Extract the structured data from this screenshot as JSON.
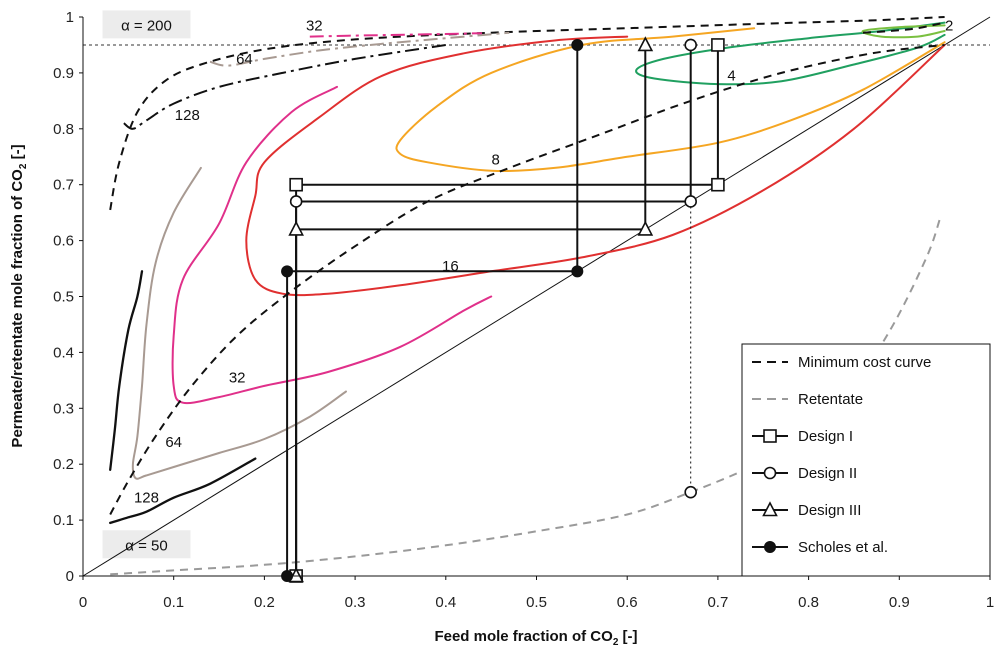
{
  "chart_data": {
    "type": "line",
    "xlabel": "Feed  mole fraction of CO",
    "xlabel_sub": "2",
    "xlabel_suffix": " [-]",
    "ylabel": "Permeate/retentate mole fraction of CO",
    "ylabel_sub": "2",
    "ylabel_suffix": " [-]",
    "xlim": [
      0,
      1
    ],
    "ylim": [
      0,
      1
    ],
    "x_ticks": [
      "0",
      "0.1",
      "0.2",
      "0.3",
      "0.4",
      "0.5",
      "0.6",
      "0.7",
      "0.8",
      "0.9",
      "1"
    ],
    "y_ticks": [
      "0",
      "0.1",
      "0.2",
      "0.3",
      "0.4",
      "0.5",
      "0.6",
      "0.7",
      "0.8",
      "0.9",
      "1"
    ],
    "grid": false,
    "reference_line_y": 0.95,
    "alpha_labels": [
      {
        "text": "α = 200",
        "x": 0.07,
        "y": 0.985
      },
      {
        "text": "α = 50",
        "x": 0.07,
        "y": 0.055
      }
    ],
    "legend": {
      "placement": "bottom-right",
      "entries": [
        {
          "label": "Minimum cost curve",
          "style": "dash",
          "color": "#111111"
        },
        {
          "label": "Retentate",
          "style": "dash",
          "color": "#9a9a9a"
        },
        {
          "label": "Design I",
          "style": "square",
          "color": "#111111"
        },
        {
          "label": "Design II",
          "style": "circle",
          "color": "#111111"
        },
        {
          "label": "Design III",
          "style": "triangle",
          "color": "#111111"
        },
        {
          "label": "Scholes et al.",
          "style": "dot",
          "color": "#111111"
        }
      ]
    },
    "diagonal": [
      [
        0,
        0
      ],
      [
        1,
        1
      ]
    ],
    "min_cost_curves": [
      {
        "name": "α = 200",
        "color": "#111111",
        "dash": "8,6",
        "points": [
          [
            0.03,
            0.655
          ],
          [
            0.04,
            0.74
          ],
          [
            0.06,
            0.83
          ],
          [
            0.09,
            0.885
          ],
          [
            0.13,
            0.915
          ],
          [
            0.2,
            0.942
          ],
          [
            0.3,
            0.96
          ],
          [
            0.45,
            0.972
          ],
          [
            0.6,
            0.98
          ],
          [
            0.75,
            0.988
          ],
          [
            0.87,
            0.994
          ],
          [
            0.95,
            1.0
          ]
        ]
      },
      {
        "name": "α = 50",
        "color": "#111111",
        "dash": "8,6",
        "points": [
          [
            0.03,
            0.11
          ],
          [
            0.05,
            0.17
          ],
          [
            0.08,
            0.25
          ],
          [
            0.12,
            0.34
          ],
          [
            0.17,
            0.43
          ],
          [
            0.23,
            0.51
          ],
          [
            0.3,
            0.59
          ],
          [
            0.38,
            0.67
          ],
          [
            0.47,
            0.73
          ],
          [
            0.57,
            0.79
          ],
          [
            0.67,
            0.85
          ],
          [
            0.77,
            0.9
          ],
          [
            0.87,
            0.935
          ],
          [
            0.95,
            0.95
          ]
        ]
      },
      {
        "name": "α = 128 (high)",
        "color": "#111111",
        "dash": "14,5,3,5",
        "points": [
          [
            0.045,
            0.81
          ],
          [
            0.055,
            0.8
          ],
          [
            0.07,
            0.815
          ],
          [
            0.1,
            0.845
          ],
          [
            0.15,
            0.875
          ],
          [
            0.22,
            0.9
          ],
          [
            0.3,
            0.925
          ],
          [
            0.4,
            0.95
          ]
        ]
      },
      {
        "name": "α = 64 (high)",
        "color": "#a89a92",
        "dash": "14,5,3,5",
        "points": [
          [
            0.14,
            0.92
          ],
          [
            0.16,
            0.913
          ],
          [
            0.2,
            0.925
          ],
          [
            0.26,
            0.94
          ],
          [
            0.33,
            0.952
          ],
          [
            0.4,
            0.962
          ],
          [
            0.47,
            0.972
          ]
        ]
      },
      {
        "name": "α = 32 (high)",
        "color": "#e0308a",
        "dash": "14,5,3,5",
        "points": [
          [
            0.25,
            0.965
          ],
          [
            0.31,
            0.967
          ],
          [
            0.38,
            0.969
          ],
          [
            0.44,
            0.971
          ]
        ]
      },
      {
        "name": "α = 2 (high)",
        "color": "#111111",
        "dash": "8,6",
        "points": [
          [
            0.86,
            0.972
          ],
          [
            0.89,
            0.975
          ],
          [
            0.92,
            0.98
          ],
          [
            0.95,
            0.99
          ]
        ]
      }
    ],
    "alpha_curves": [
      {
        "name": "128",
        "color": "#111111",
        "width": 2.3,
        "points": [
          [
            0.03,
            0.095
          ],
          [
            0.04,
            0.1
          ],
          [
            0.05,
            0.105
          ],
          [
            0.07,
            0.115
          ],
          [
            0.1,
            0.14
          ],
          [
            0.14,
            0.165
          ],
          [
            0.19,
            0.21
          ]
        ]
      },
      {
        "name": "128",
        "color": "#111111",
        "width": 2.3,
        "points": [
          [
            0.03,
            0.19
          ],
          [
            0.035,
            0.26
          ],
          [
            0.04,
            0.34
          ],
          [
            0.05,
            0.44
          ],
          [
            0.06,
            0.5
          ],
          [
            0.065,
            0.545
          ]
        ]
      },
      {
        "name": "64",
        "color": "#a89a92",
        "width": 2.0,
        "points": [
          [
            0.13,
            0.73
          ],
          [
            0.1,
            0.65
          ],
          [
            0.08,
            0.56
          ],
          [
            0.07,
            0.45
          ],
          [
            0.065,
            0.34
          ],
          [
            0.06,
            0.25
          ],
          [
            0.055,
            0.2
          ],
          [
            0.058,
            0.175
          ],
          [
            0.07,
            0.18
          ],
          [
            0.1,
            0.195
          ],
          [
            0.15,
            0.22
          ],
          [
            0.2,
            0.245
          ],
          [
            0.25,
            0.285
          ],
          [
            0.29,
            0.33
          ]
        ]
      },
      {
        "name": "32",
        "color": "#e0308a",
        "width": 2.0,
        "points": [
          [
            0.28,
            0.875
          ],
          [
            0.23,
            0.83
          ],
          [
            0.18,
            0.74
          ],
          [
            0.15,
            0.63
          ],
          [
            0.11,
            0.53
          ],
          [
            0.1,
            0.43
          ],
          [
            0.1,
            0.34
          ],
          [
            0.11,
            0.31
          ],
          [
            0.15,
            0.32
          ],
          [
            0.2,
            0.34
          ],
          [
            0.27,
            0.365
          ],
          [
            0.35,
            0.41
          ],
          [
            0.42,
            0.475
          ],
          [
            0.45,
            0.5
          ]
        ]
      },
      {
        "name": "16",
        "color": "#e03030",
        "width": 2.0,
        "points": [
          [
            0.6,
            0.965
          ],
          [
            0.52,
            0.958
          ],
          [
            0.42,
            0.935
          ],
          [
            0.33,
            0.895
          ],
          [
            0.26,
            0.82
          ],
          [
            0.2,
            0.74
          ],
          [
            0.19,
            0.68
          ],
          [
            0.18,
            0.6
          ],
          [
            0.19,
            0.53
          ],
          [
            0.22,
            0.505
          ],
          [
            0.27,
            0.505
          ],
          [
            0.35,
            0.52
          ],
          [
            0.45,
            0.545
          ],
          [
            0.55,
            0.57
          ],
          [
            0.65,
            0.61
          ],
          [
            0.75,
            0.69
          ],
          [
            0.85,
            0.8
          ],
          [
            0.95,
            0.95
          ]
        ]
      },
      {
        "name": "8",
        "color": "#f5a623",
        "width": 2.0,
        "points": [
          [
            0.74,
            0.98
          ],
          [
            0.65,
            0.965
          ],
          [
            0.55,
            0.95
          ],
          [
            0.45,
            0.9
          ],
          [
            0.39,
            0.84
          ],
          [
            0.35,
            0.78
          ],
          [
            0.35,
            0.755
          ],
          [
            0.38,
            0.74
          ],
          [
            0.45,
            0.725
          ],
          [
            0.52,
            0.73
          ],
          [
            0.6,
            0.75
          ],
          [
            0.7,
            0.775
          ],
          [
            0.78,
            0.815
          ],
          [
            0.86,
            0.87
          ],
          [
            0.95,
            0.955
          ]
        ]
      },
      {
        "name": "4",
        "color": "#20a060",
        "width": 2.0,
        "points": [
          [
            0.95,
            0.99
          ],
          [
            0.88,
            0.975
          ],
          [
            0.8,
            0.962
          ],
          [
            0.71,
            0.945
          ],
          [
            0.64,
            0.925
          ],
          [
            0.61,
            0.905
          ],
          [
            0.63,
            0.89
          ],
          [
            0.7,
            0.88
          ],
          [
            0.77,
            0.885
          ],
          [
            0.85,
            0.915
          ],
          [
            0.92,
            0.945
          ],
          [
            0.95,
            0.968
          ]
        ]
      },
      {
        "name": "2",
        "color": "#7ac040",
        "width": 2.0,
        "points": [
          [
            0.95,
            0.985
          ],
          [
            0.9,
            0.982
          ],
          [
            0.86,
            0.975
          ],
          [
            0.88,
            0.965
          ],
          [
            0.92,
            0.965
          ],
          [
            0.95,
            0.975
          ]
        ]
      }
    ],
    "curve_labels": [
      {
        "text": "32",
        "x": 0.255,
        "y": 0.985
      },
      {
        "text": "64",
        "x": 0.178,
        "y": 0.925
      },
      {
        "text": "128",
        "x": 0.115,
        "y": 0.825
      },
      {
        "text": "2",
        "x": 0.955,
        "y": 0.985
      },
      {
        "text": "4",
        "x": 0.715,
        "y": 0.895
      },
      {
        "text": "8",
        "x": 0.455,
        "y": 0.745
      },
      {
        "text": "16",
        "x": 0.405,
        "y": 0.555
      },
      {
        "text": "32",
        "x": 0.17,
        "y": 0.355
      },
      {
        "text": "64",
        "x": 0.1,
        "y": 0.24
      },
      {
        "text": "128",
        "x": 0.07,
        "y": 0.14
      }
    ],
    "retentate": {
      "name": "Retentate",
      "color": "#9a9a9a",
      "dash": "8,6",
      "points": [
        [
          0.03,
          0.003
        ],
        [
          0.1,
          0.01
        ],
        [
          0.2,
          0.02
        ],
        [
          0.3,
          0.035
        ],
        [
          0.4,
          0.055
        ],
        [
          0.5,
          0.08
        ],
        [
          0.6,
          0.11
        ],
        [
          0.67,
          0.15
        ],
        [
          0.73,
          0.19
        ],
        [
          0.78,
          0.23
        ],
        [
          0.84,
          0.32
        ],
        [
          0.89,
          0.44
        ],
        [
          0.93,
          0.57
        ],
        [
          0.945,
          0.64
        ]
      ]
    },
    "design_markers": [
      {
        "name": "Design I",
        "marker": "square",
        "points": [
          [
            0.7,
            0.95
          ],
          [
            0.7,
            0.7
          ],
          [
            0.235,
            0.7
          ],
          [
            0.235,
            0.0
          ]
        ],
        "path": [
          [
            0.7,
            0.95
          ],
          [
            0.7,
            0.7
          ],
          [
            0.235,
            0.7
          ],
          [
            0.235,
            0.0
          ]
        ]
      },
      {
        "name": "Design II",
        "marker": "circle",
        "points": [
          [
            0.67,
            0.95
          ],
          [
            0.67,
            0.67
          ],
          [
            0.235,
            0.67
          ],
          [
            0.67,
            0.15
          ]
        ],
        "path": [
          [
            0.67,
            0.95
          ],
          [
            0.67,
            0.67
          ],
          [
            0.235,
            0.67
          ],
          [
            0.235,
            0.0
          ]
        ],
        "dotted": [
          [
            0.67,
            0.67
          ],
          [
            0.67,
            0.15
          ]
        ]
      },
      {
        "name": "Design III",
        "marker": "triangle",
        "points": [
          [
            0.62,
            0.95
          ],
          [
            0.62,
            0.62
          ],
          [
            0.235,
            0.62
          ],
          [
            0.235,
            0.0
          ]
        ],
        "path": [
          [
            0.62,
            0.95
          ],
          [
            0.62,
            0.62
          ],
          [
            0.235,
            0.62
          ],
          [
            0.235,
            0.0
          ]
        ]
      },
      {
        "name": "Scholes et al.",
        "marker": "dot",
        "points": [
          [
            0.545,
            0.95
          ],
          [
            0.545,
            0.545
          ],
          [
            0.225,
            0.545
          ],
          [
            0.225,
            0.0
          ]
        ],
        "path": [
          [
            0.545,
            0.95
          ],
          [
            0.545,
            0.545
          ],
          [
            0.225,
            0.545
          ],
          [
            0.225,
            0.0
          ]
        ]
      }
    ]
  }
}
